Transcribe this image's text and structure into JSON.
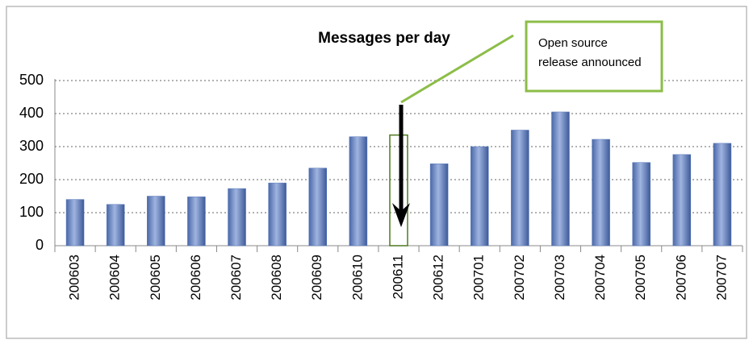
{
  "chart_data": {
    "type": "bar",
    "title": "Messages per day",
    "categories": [
      "200603",
      "200604",
      "200605",
      "200606",
      "200607",
      "200608",
      "200609",
      "200610",
      "200611",
      "200612",
      "200701",
      "200702",
      "200703",
      "200704",
      "200705",
      "200706",
      "200707"
    ],
    "values": [
      140,
      125,
      150,
      148,
      173,
      190,
      235,
      330,
      335,
      248,
      300,
      350,
      405,
      322,
      252,
      276,
      310
    ],
    "color": "#5676b8",
    "highlight_index": 8,
    "highlight_color": "#4e7a1e",
    "ylim": [
      0,
      500
    ],
    "yticks": [
      0,
      100,
      200,
      300,
      400,
      500
    ],
    "grid": true,
    "annotation": [
      "Open source",
      "release announced"
    ],
    "annotation_color": "#8cbd48"
  }
}
